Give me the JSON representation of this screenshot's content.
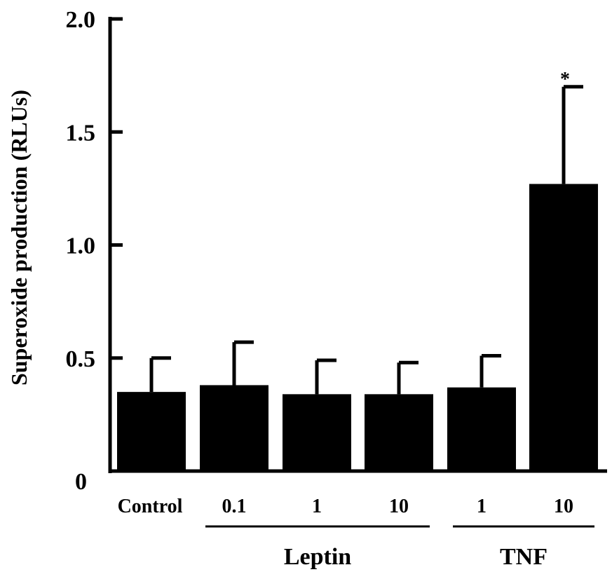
{
  "chart_data": {
    "type": "bar",
    "title": "",
    "xlabel": "",
    "ylabel": "Superoxide production (RLUs)",
    "ylim": [
      0,
      2.0
    ],
    "yticks": [
      0,
      0.5,
      1.0,
      1.5,
      2.0
    ],
    "ytick_labels": [
      "0",
      "0.5",
      "1.0",
      "1.5",
      "2.0"
    ],
    "categories": [
      "Control",
      "0.1",
      "1",
      "10",
      "1",
      "10"
    ],
    "values": [
      0.35,
      0.38,
      0.34,
      0.34,
      0.37,
      1.27
    ],
    "errors": [
      0.15,
      0.19,
      0.15,
      0.14,
      0.14,
      0.43
    ],
    "annotations": [
      {
        "category_index": 5,
        "text": "*"
      }
    ],
    "groups": [
      {
        "label": "Leptin",
        "category_indices": [
          1,
          2,
          3
        ]
      },
      {
        "label": "TNF",
        "category_indices": [
          4,
          5
        ]
      }
    ],
    "bar_color": "#000000",
    "grid": false,
    "legend": "none"
  }
}
